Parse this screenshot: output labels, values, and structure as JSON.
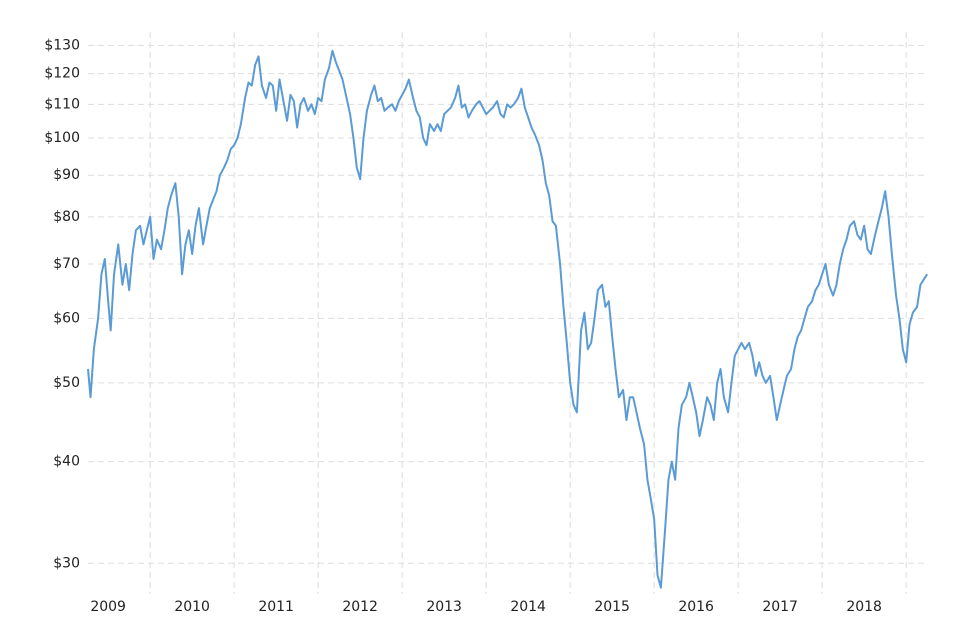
{
  "chart_data": {
    "type": "line",
    "log_scale_y": true,
    "grid": true,
    "color": "#5b9bd5",
    "xlim": [
      2009.26,
      2019.26
    ],
    "xticks": [
      {
        "value": 2009.5,
        "label": "2009"
      },
      {
        "value": 2010.5,
        "label": "2010"
      },
      {
        "value": 2011.5,
        "label": "2011"
      },
      {
        "value": 2012.5,
        "label": "2012"
      },
      {
        "value": 2013.5,
        "label": "2013"
      },
      {
        "value": 2014.5,
        "label": "2014"
      },
      {
        "value": 2015.5,
        "label": "2015"
      },
      {
        "value": 2016.5,
        "label": "2016"
      },
      {
        "value": 2017.5,
        "label": "2017"
      },
      {
        "value": 2018.5,
        "label": "2018"
      }
    ],
    "ylim": [
      27.5,
      135
    ],
    "yticks": [
      {
        "value": 30,
        "label": "$30"
      },
      {
        "value": 40,
        "label": "$40"
      },
      {
        "value": 50,
        "label": "$50"
      },
      {
        "value": 60,
        "label": "$60"
      },
      {
        "value": 70,
        "label": "$70"
      },
      {
        "value": 80,
        "label": "$80"
      },
      {
        "value": 90,
        "label": "$90"
      },
      {
        "value": 100,
        "label": "$100"
      },
      {
        "value": 110,
        "label": "$110"
      },
      {
        "value": 120,
        "label": "$120"
      },
      {
        "value": 130,
        "label": "$130"
      }
    ],
    "x": [
      2009.26,
      2009.29,
      2009.33,
      2009.38,
      2009.42,
      2009.46,
      2009.5,
      2009.53,
      2009.57,
      2009.62,
      2009.67,
      2009.71,
      2009.75,
      2009.79,
      2009.83,
      2009.88,
      2009.92,
      2009.96,
      2010.0,
      2010.04,
      2010.08,
      2010.13,
      2010.17,
      2010.21,
      2010.25,
      2010.3,
      2010.34,
      2010.38,
      2010.42,
      2010.46,
      2010.5,
      2010.54,
      2010.58,
      2010.63,
      2010.67,
      2010.71,
      2010.75,
      2010.79,
      2010.83,
      2010.88,
      2010.92,
      2010.96,
      2011.0,
      2011.04,
      2011.08,
      2011.13,
      2011.17,
      2011.21,
      2011.25,
      2011.29,
      2011.33,
      2011.38,
      2011.42,
      2011.46,
      2011.5,
      2011.54,
      2011.58,
      2011.63,
      2011.67,
      2011.71,
      2011.75,
      2011.79,
      2011.83,
      2011.88,
      2011.92,
      2011.96,
      2012.0,
      2012.04,
      2012.08,
      2012.13,
      2012.17,
      2012.21,
      2012.25,
      2012.29,
      2012.33,
      2012.38,
      2012.42,
      2012.46,
      2012.5,
      2012.54,
      2012.58,
      2012.63,
      2012.67,
      2012.71,
      2012.75,
      2012.79,
      2012.83,
      2012.88,
      2012.92,
      2012.96,
      2013.0,
      2013.04,
      2013.08,
      2013.13,
      2013.17,
      2013.21,
      2013.25,
      2013.29,
      2013.33,
      2013.38,
      2013.42,
      2013.46,
      2013.5,
      2013.54,
      2013.58,
      2013.63,
      2013.67,
      2013.71,
      2013.75,
      2013.79,
      2013.83,
      2013.88,
      2013.92,
      2013.96,
      2014.0,
      2014.04,
      2014.08,
      2014.13,
      2014.17,
      2014.21,
      2014.25,
      2014.29,
      2014.33,
      2014.38,
      2014.42,
      2014.46,
      2014.5,
      2014.54,
      2014.58,
      2014.63,
      2014.67,
      2014.71,
      2014.75,
      2014.79,
      2014.83,
      2014.88,
      2014.92,
      2014.96,
      2015.0,
      2015.04,
      2015.08,
      2015.13,
      2015.17,
      2015.21,
      2015.25,
      2015.29,
      2015.33,
      2015.38,
      2015.42,
      2015.46,
      2015.5,
      2015.54,
      2015.58,
      2015.63,
      2015.67,
      2015.71,
      2015.75,
      2015.79,
      2015.83,
      2015.88,
      2015.92,
      2015.96,
      2016.0,
      2016.04,
      2016.08,
      2016.13,
      2016.17,
      2016.21,
      2016.25,
      2016.29,
      2016.33,
      2016.38,
      2016.42,
      2016.46,
      2016.5,
      2016.54,
      2016.58,
      2016.63,
      2016.67,
      2016.71,
      2016.75,
      2016.79,
      2016.83,
      2016.88,
      2016.92,
      2016.96,
      2017.0,
      2017.04,
      2017.08,
      2017.13,
      2017.17,
      2017.21,
      2017.25,
      2017.29,
      2017.33,
      2017.38,
      2017.42,
      2017.46,
      2017.5,
      2017.54,
      2017.58,
      2017.63,
      2017.67,
      2017.71,
      2017.75,
      2017.79,
      2017.83,
      2017.88,
      2017.92,
      2017.96,
      2018.0,
      2018.04,
      2018.08,
      2018.13,
      2018.17,
      2018.21,
      2018.25,
      2018.29,
      2018.33,
      2018.38,
      2018.42,
      2018.46,
      2018.5,
      2018.54,
      2018.58,
      2018.63,
      2018.67,
      2018.71,
      2018.75,
      2018.79,
      2018.83,
      2018.88,
      2018.92,
      2018.96,
      2019.0,
      2019.04,
      2019.08,
      2019.13,
      2019.17,
      2019.21,
      2019.25
    ],
    "values": [
      52,
      48,
      55,
      60,
      68,
      71,
      63,
      58,
      68,
      74,
      66,
      70,
      65,
      72,
      77,
      78,
      74,
      77,
      80,
      71,
      75,
      73,
      77,
      82,
      85,
      88,
      80,
      68,
      74,
      77,
      72,
      78,
      82,
      74,
      78,
      82,
      84,
      86,
      90,
      92,
      94,
      97,
      98,
      100,
      104,
      112,
      117,
      116,
      123,
      126,
      116,
      112,
      117,
      116,
      108,
      118,
      112,
      105,
      113,
      111,
      103,
      110,
      112,
      108,
      110,
      107,
      112,
      111,
      118,
      122,
      128,
      124,
      121,
      118,
      113,
      107,
      100,
      92,
      89,
      100,
      108,
      113,
      116,
      111,
      112,
      108,
      109,
      110,
      108,
      111,
      113,
      115,
      118,
      112,
      108,
      106,
      100,
      98,
      104,
      102,
      104,
      102,
      107,
      108,
      109,
      112,
      116,
      109,
      110,
      106,
      108,
      110,
      111,
      109,
      107,
      108,
      109,
      111,
      107,
      106,
      110,
      109,
      110,
      112,
      115,
      109,
      106,
      103,
      101,
      98,
      94,
      88,
      85,
      79,
      78,
      70,
      62,
      56,
      50,
      47,
      46,
      58,
      61,
      55,
      56,
      60,
      65,
      66,
      62,
      63,
      57,
      52,
      48,
      49,
      45,
      48,
      48,
      46,
      44,
      42,
      38,
      36,
      34,
      29,
      28,
      33,
      38,
      40,
      38,
      44,
      47,
      48,
      50,
      48,
      46,
      43,
      45,
      48,
      47,
      45,
      50,
      52,
      48,
      46,
      50,
      54,
      55,
      56,
      55,
      56,
      54,
      51,
      53,
      51,
      50,
      51,
      48,
      45,
      47,
      49,
      51,
      52,
      55,
      57,
      58,
      60,
      62,
      63,
      65,
      66,
      68,
      70,
      66,
      64,
      66,
      70,
      73,
      75,
      78,
      79,
      76,
      75,
      78,
      73,
      72,
      76,
      79,
      82,
      86,
      80,
      72,
      64,
      60,
      55,
      53,
      59,
      61,
      62,
      66,
      67,
      68
    ]
  }
}
